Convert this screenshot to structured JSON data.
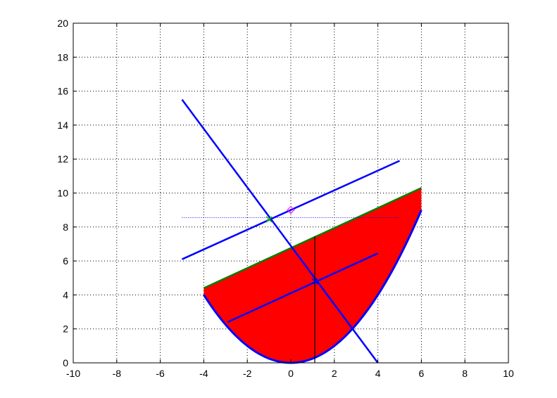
{
  "chart_data": {
    "type": "line",
    "title": "",
    "xlabel": "",
    "ylabel": "",
    "xlim": [
      -10,
      10
    ],
    "ylim": [
      0,
      20
    ],
    "grid": true,
    "grid_style": "dotted",
    "x_ticks": [
      "-10",
      "-8",
      "-6",
      "-4",
      "-2",
      "0",
      "2",
      "4",
      "6",
      "8",
      "10"
    ],
    "y_ticks": [
      "0",
      "2",
      "4",
      "6",
      "8",
      "10",
      "12",
      "14",
      "16",
      "18",
      "20"
    ],
    "colors": {
      "fill": "#ff0000",
      "curve": "#0000ff",
      "chord": "#008000",
      "vertical": "#000000",
      "dotted": "#0000ff",
      "marker_green": "#00c000",
      "marker_magenta": "#ff00ff"
    },
    "filled_region": {
      "curve": "y = x^2/4",
      "x_range": [
        -4,
        6
      ],
      "chord": [
        [
          -4,
          4.4
        ],
        [
          6,
          10.3
        ]
      ]
    },
    "series": [
      {
        "kind": "curve",
        "color": "#0000ff",
        "formula": "x^2/4",
        "x_range": [
          -4,
          6
        ]
      },
      {
        "kind": "line",
        "color": "#008000",
        "points": [
          [
            -4,
            4.4
          ],
          [
            6,
            10.3
          ]
        ]
      },
      {
        "kind": "line",
        "color": "#0000ff",
        "points": [
          [
            -5,
            15.5
          ],
          [
            4,
            0
          ]
        ]
      },
      {
        "kind": "line",
        "color": "#0000ff",
        "points": [
          [
            -5,
            6.1
          ],
          [
            5,
            11.9
          ]
        ]
      },
      {
        "kind": "line",
        "color": "#0000ff",
        "points": [
          [
            -2.9,
            2.4
          ],
          [
            4,
            6.45
          ]
        ]
      },
      {
        "kind": "line",
        "color": "#000000",
        "points": [
          [
            1.1,
            0
          ],
          [
            1.1,
            7.45
          ]
        ]
      },
      {
        "kind": "dotted",
        "color": "#0000ff",
        "points": [
          [
            -5,
            8.55
          ],
          [
            5,
            8.55
          ]
        ]
      }
    ],
    "markers": [
      {
        "x": -1.0,
        "y": 8.45,
        "color": "#00c000",
        "symbol": "x"
      },
      {
        "x": 0.0,
        "y": 9.0,
        "color": "#ff00ff",
        "symbol": "diamond"
      },
      {
        "x": 1.1,
        "y": 4.8,
        "color": "#0000ff",
        "symbol": "x"
      }
    ]
  }
}
